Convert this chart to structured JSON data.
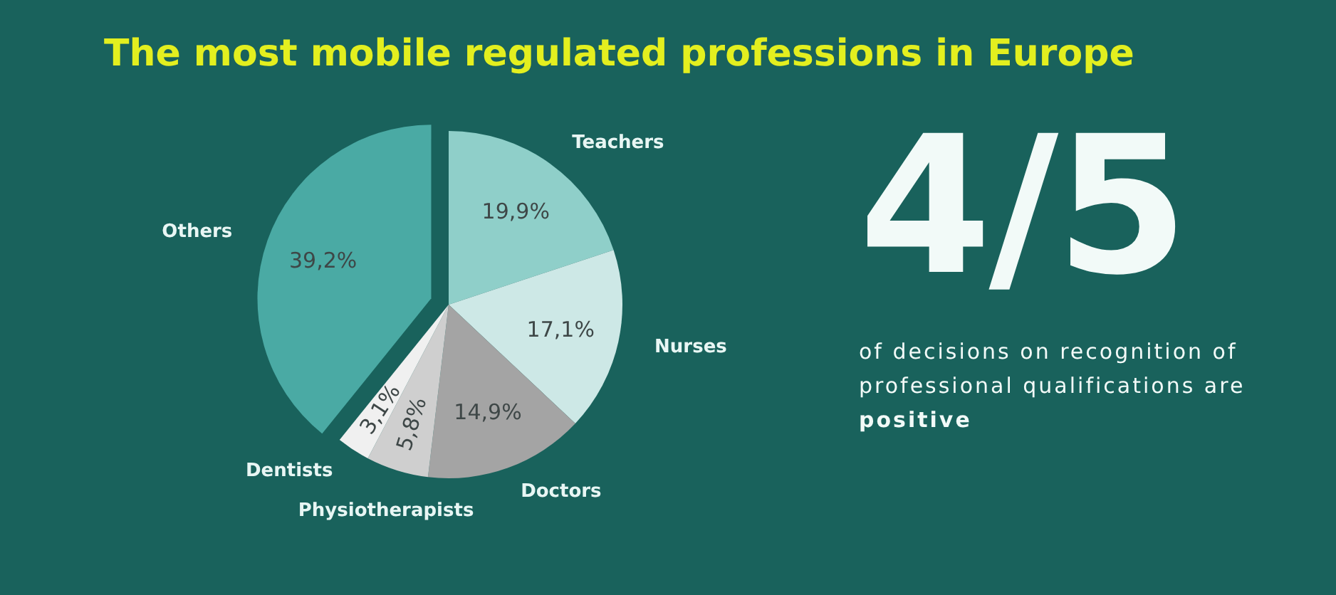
{
  "chart_data": [
    {
      "type": "pie",
      "title": "The most mobile regulated professions in Europe",
      "categories": [
        "Teachers",
        "Nurses",
        "Doctors",
        "Physiotherapists",
        "Dentists",
        "Others"
      ],
      "values": [
        19.9,
        17.1,
        14.9,
        5.8,
        3.1,
        39.2
      ],
      "colors": [
        "#8fcfc9",
        "#cde8e6",
        "#a4a4a4",
        "#cfcfcf",
        "#f0f0f0",
        "#4aaaa4"
      ],
      "value_labels": [
        "19,9%",
        "17,1%",
        "14,9%",
        "5,8%",
        "3,1%",
        "39,2%"
      ]
    },
    {
      "type": "other",
      "title": "4/5",
      "annotations": [
        "of decisions on recognition of professional qualifications are",
        "positive"
      ]
    }
  ]
}
